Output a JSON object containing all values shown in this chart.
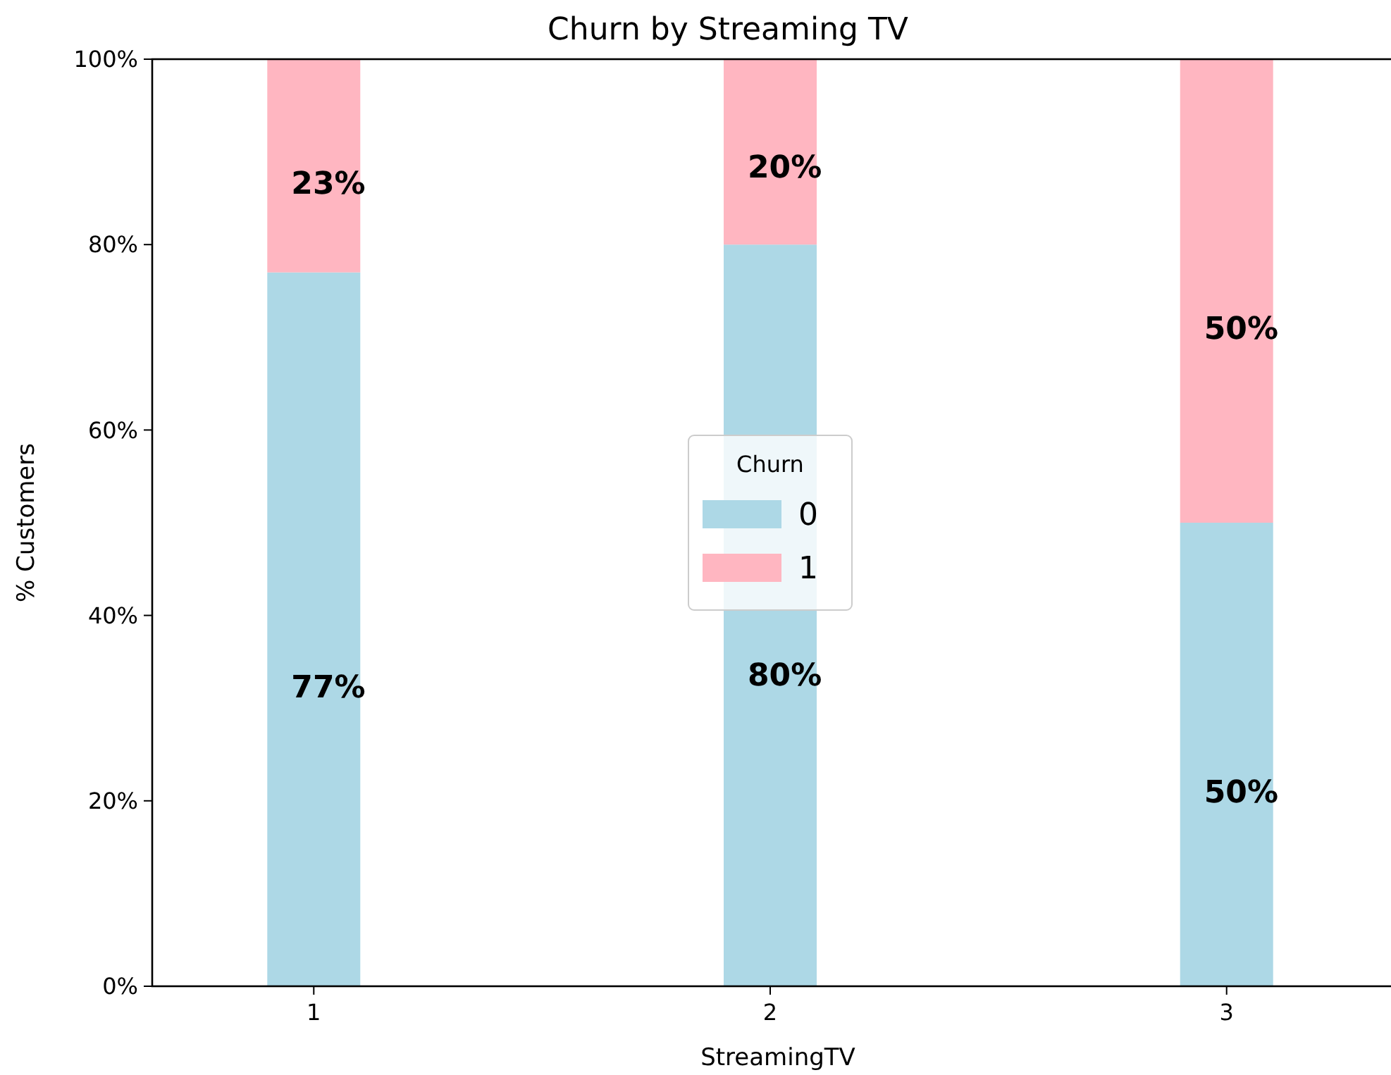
{
  "chart_data": {
    "type": "bar",
    "title": "Churn by Streaming TV",
    "xlabel": "StreamingTV",
    "ylabel": "% Customers",
    "legend_title": "Churn",
    "categories": [
      "1",
      "2",
      "3"
    ],
    "stacked": true,
    "legend": "center",
    "series": [
      {
        "name": "0",
        "color": "#add8e6",
        "values": [
          77,
          80,
          50
        ],
        "value_labels": [
          "77%",
          "80%",
          "50%"
        ]
      },
      {
        "name": "1",
        "color": "#ffb6c1",
        "values": [
          23,
          20,
          50
        ],
        "value_labels": [
          "23%",
          "20%",
          "50%"
        ]
      }
    ],
    "ylim": [
      0,
      100
    ],
    "yticks": [
      {
        "value": 0,
        "label": "0%"
      },
      {
        "value": 20,
        "label": "20%"
      },
      {
        "value": 40,
        "label": "40%"
      },
      {
        "value": 60,
        "label": "60%"
      },
      {
        "value": 80,
        "label": "80%"
      },
      {
        "value": 100,
        "label": "100%"
      }
    ]
  }
}
